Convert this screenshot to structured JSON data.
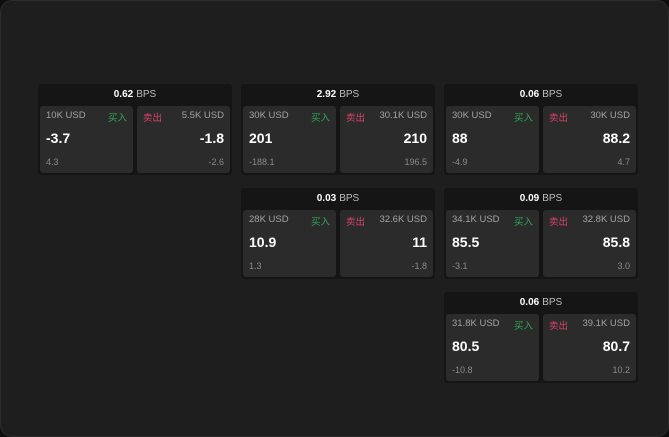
{
  "unit": "BPS",
  "buy_label": "买入",
  "sell_label": "卖出",
  "cards": [
    {
      "spread": "0.62",
      "buy": {
        "size": "10K USD",
        "price": "-3.7",
        "change": "4.3"
      },
      "sell": {
        "size": "5.5K USD",
        "price": "-1.8",
        "change": "-2.6"
      }
    },
    {
      "spread": "2.92",
      "buy": {
        "size": "30K USD",
        "price": "201",
        "change": "-188.1"
      },
      "sell": {
        "size": "30.1K USD",
        "price": "210",
        "change": "196.5"
      }
    },
    {
      "spread": "0.06",
      "buy": {
        "size": "30K USD",
        "price": "88",
        "change": "-4.9"
      },
      "sell": {
        "size": "30K USD",
        "price": "88.2",
        "change": "4.7"
      }
    },
    {
      "spread": "0.03",
      "buy": {
        "size": "28K USD",
        "price": "10.9",
        "change": "1.3"
      },
      "sell": {
        "size": "32.6K USD",
        "price": "11",
        "change": "-1.8"
      }
    },
    {
      "spread": "0.09",
      "buy": {
        "size": "34.1K USD",
        "price": "85.5",
        "change": "-3.1"
      },
      "sell": {
        "size": "32.8K USD",
        "price": "85.8",
        "change": "3.0"
      }
    },
    {
      "spread": "0.06",
      "buy": {
        "size": "31.8K USD",
        "price": "80.5",
        "change": "-10.8"
      },
      "sell": {
        "size": "39.1K USD",
        "price": "80.7",
        "change": "10.2"
      }
    }
  ]
}
